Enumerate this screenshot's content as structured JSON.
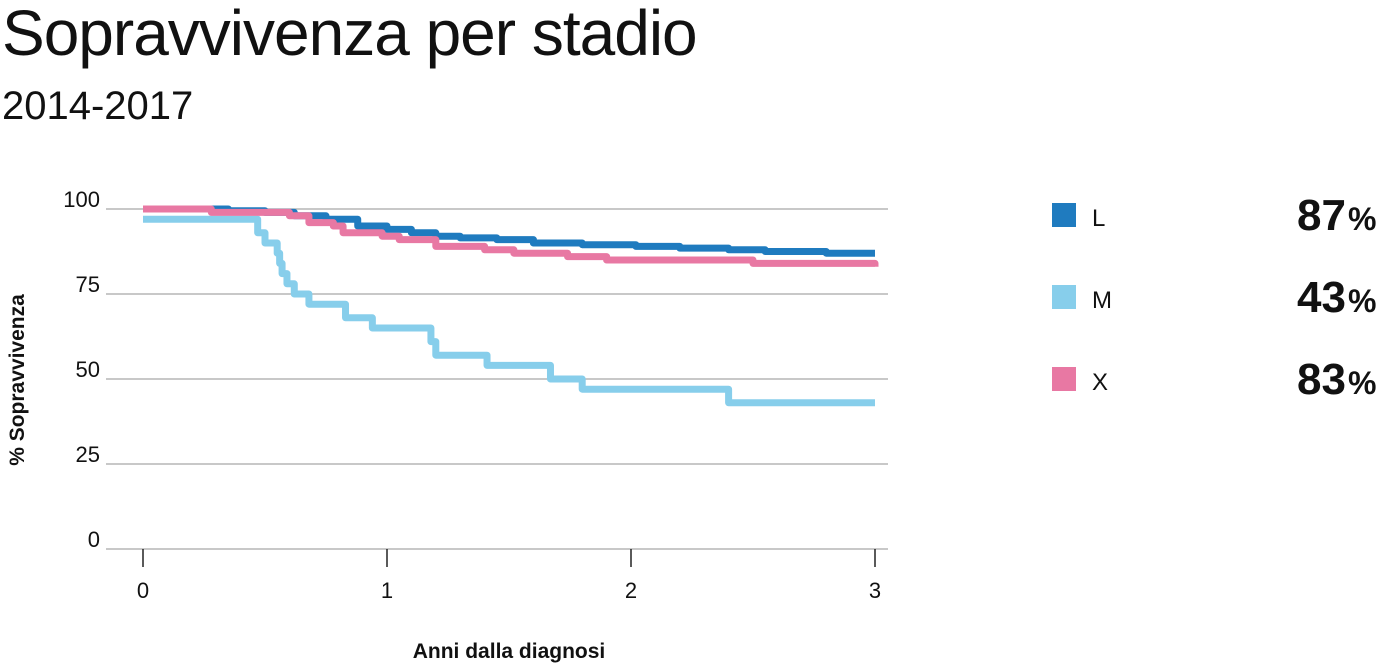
{
  "title": "Sopravvivenza per stadio",
  "subtitle": "2014-2017",
  "chart_data": {
    "type": "line",
    "step": true,
    "title": "Sopravvivenza per stadio",
    "subtitle": "2014-2017",
    "xlabel": "Anni dalla diagnosi",
    "ylabel": "% Sopravvivenza",
    "xlim": [
      0,
      3
    ],
    "ylim": [
      0,
      100
    ],
    "xticks": [
      "0",
      "1",
      "2",
      "3"
    ],
    "yticks": [
      "0",
      "25",
      "50",
      "75",
      "100"
    ],
    "grid": "horizontal",
    "legend_position": "right",
    "series": [
      {
        "name": "L",
        "color": "#1f7bbf",
        "final_label": "87",
        "final_unit": "%",
        "x": [
          0,
          0.25,
          0.35,
          0.5,
          0.62,
          0.75,
          0.88,
          1.0,
          1.1,
          1.2,
          1.3,
          1.45,
          1.6,
          1.8,
          2.02,
          2.2,
          2.4,
          2.55,
          2.8,
          3.0
        ],
        "y": [
          100,
          100,
          99.5,
          99,
          98,
          97,
          95,
          94,
          93,
          92,
          91.5,
          91,
          90,
          89.5,
          89,
          88.5,
          88,
          87.5,
          87,
          87
        ]
      },
      {
        "name": "M",
        "color": "#87ceeb",
        "final_label": "43",
        "final_unit": "%",
        "x": [
          0,
          0.45,
          0.47,
          0.5,
          0.55,
          0.56,
          0.57,
          0.59,
          0.62,
          0.68,
          0.83,
          0.94,
          1.18,
          1.2,
          1.41,
          1.67,
          1.8,
          2.4,
          3.0
        ],
        "y": [
          97,
          97,
          93,
          90,
          87,
          84,
          81,
          78,
          75,
          72,
          68,
          65,
          61,
          57,
          54,
          50,
          47,
          43,
          43
        ]
      },
      {
        "name": "X",
        "color": "#e878a3",
        "final_label": "83",
        "final_unit": "%",
        "x": [
          0,
          0.28,
          0.48,
          0.6,
          0.68,
          0.78,
          0.82,
          0.98,
          1.05,
          1.2,
          1.4,
          1.52,
          1.74,
          1.9,
          2.5,
          3.0
        ],
        "y": [
          100,
          99,
          99,
          98,
          96,
          95,
          93,
          92,
          91,
          89,
          88,
          87,
          86,
          85,
          84,
          83
        ]
      }
    ]
  }
}
